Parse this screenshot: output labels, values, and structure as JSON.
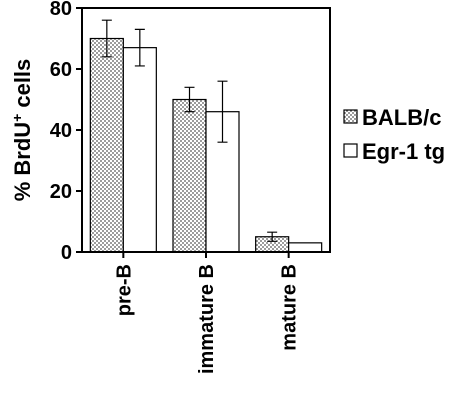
{
  "chart_data": {
    "type": "bar",
    "ylabel": [
      "% BrdU",
      "+",
      "cells"
    ],
    "categories": [
      "pre-B",
      "immature B",
      "mature B"
    ],
    "series": [
      {
        "name": "BALB/c",
        "color": "#555555",
        "pattern": "dots",
        "values": [
          70,
          50,
          5
        ],
        "errors": [
          6,
          4,
          1.5
        ]
      },
      {
        "name": "Egr-1 tg",
        "color": "#ffffff",
        "values": [
          67,
          46,
          3
        ],
        "errors": [
          6,
          10,
          0
        ]
      }
    ],
    "ylim": [
      0,
      80
    ],
    "yticks": [
      0,
      20,
      40,
      60,
      80
    ]
  }
}
